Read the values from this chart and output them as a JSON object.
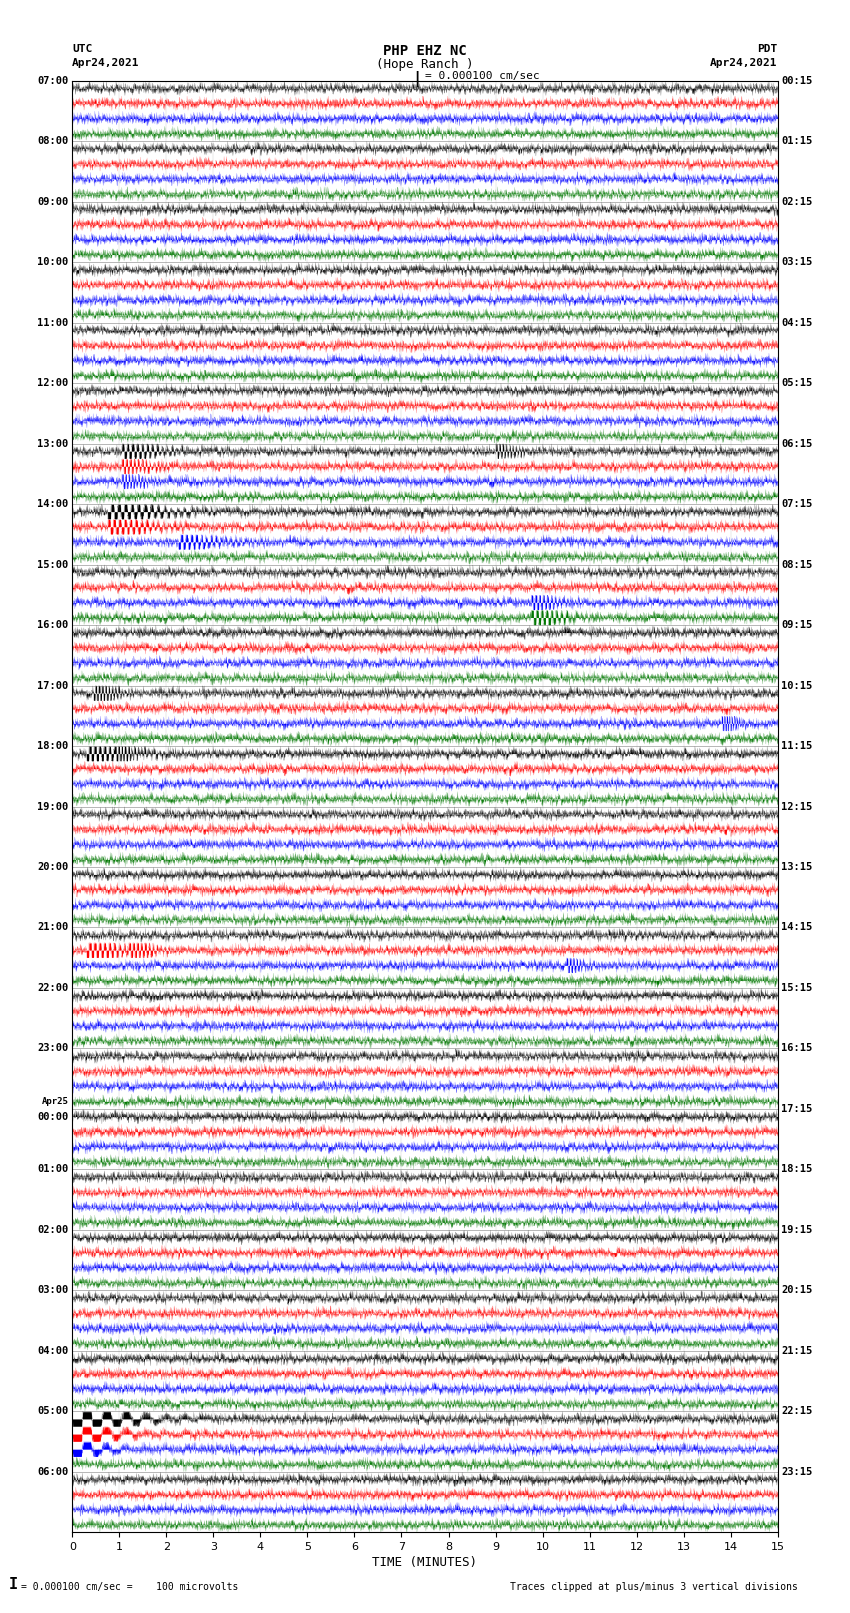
{
  "title_line1": "PHP EHZ NC",
  "title_line2": "(Hope Ranch )",
  "title_line3": "I = 0.000100 cm/sec",
  "label_utc": "UTC",
  "label_pdt": "PDT",
  "date_left": "Apr24,2021",
  "date_right": "Apr24,2021",
  "xlabel": "TIME (MINUTES)",
  "footer_left": "= 0.000100 cm/sec =    100 microvolts",
  "footer_right": "Traces clipped at plus/minus 3 vertical divisions",
  "bg_color": "#ffffff",
  "trace_colors": [
    "#000000",
    "#ff0000",
    "#0000ff",
    "#007700"
  ],
  "utc_times": [
    "07:00",
    "08:00",
    "09:00",
    "10:00",
    "11:00",
    "12:00",
    "13:00",
    "14:00",
    "15:00",
    "16:00",
    "17:00",
    "18:00",
    "19:00",
    "20:00",
    "21:00",
    "22:00",
    "23:00",
    "Apr25\n00:00",
    "01:00",
    "02:00",
    "03:00",
    "04:00",
    "05:00",
    "06:00"
  ],
  "pdt_times": [
    "00:15",
    "01:15",
    "02:15",
    "03:15",
    "04:15",
    "05:15",
    "06:15",
    "07:15",
    "08:15",
    "09:15",
    "10:15",
    "11:15",
    "12:15",
    "13:15",
    "14:15",
    "15:15",
    "16:15",
    "17:15",
    "18:15",
    "19:15",
    "20:15",
    "21:15",
    "22:15",
    "23:15"
  ],
  "n_rows": 24,
  "n_traces": 4,
  "minutes": 15,
  "samples_per_row": 4500,
  "seed": 42
}
